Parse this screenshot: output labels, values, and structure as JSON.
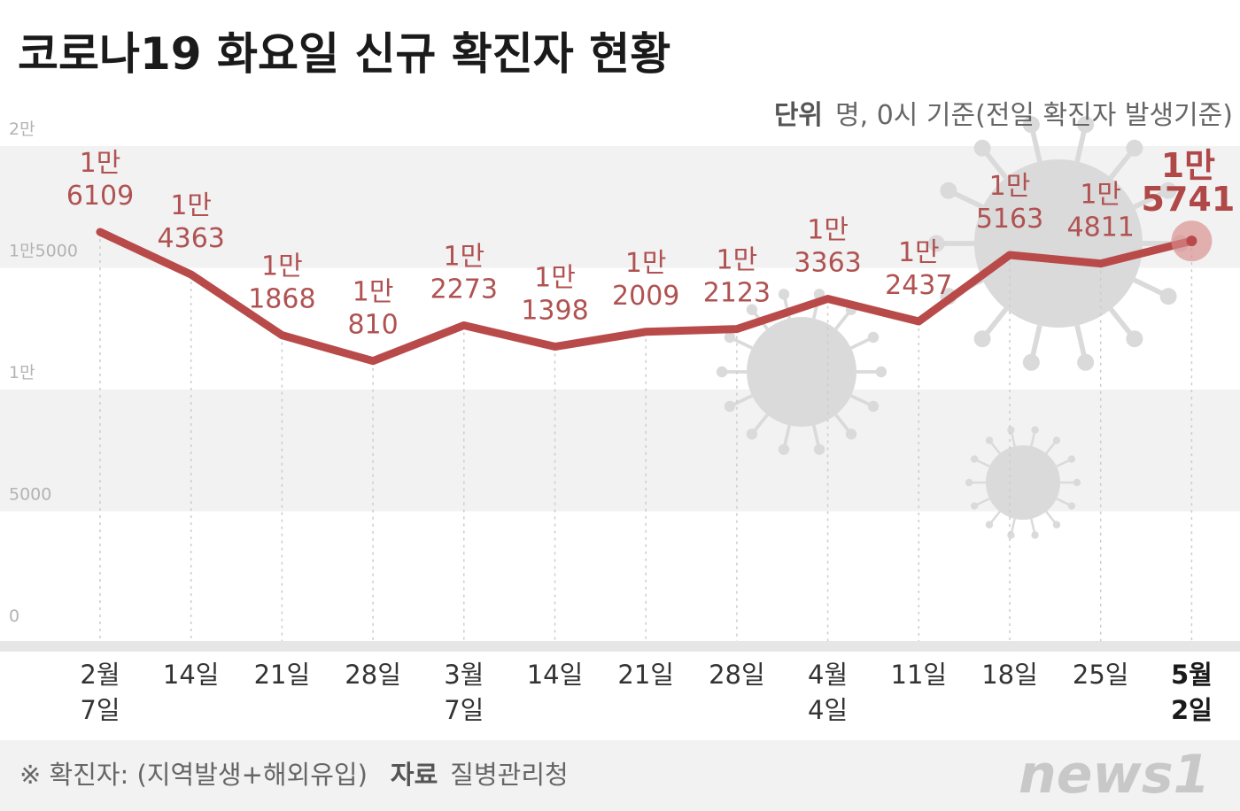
{
  "header": {
    "title": "코로나19 화요일 신규 확진자 현황",
    "unit_label": "단위",
    "unit_text": "명, 0시 기준(전일 확진자 발생기준)"
  },
  "footer": {
    "note": "※ 확진자: (지역발생+해외유입)",
    "source_label": "자료",
    "source_text": "질병관리청",
    "logo": "news1"
  },
  "colors": {
    "line": "#b94a4a",
    "label": "#b05252",
    "band": "#f2f2f2",
    "virus": "#dadada"
  },
  "chart_data": {
    "type": "line",
    "title": "코로나19 화요일 신규 확진자 현황",
    "xlabel": "",
    "ylabel": "",
    "ylim": [
      0,
      20000
    ],
    "yticks": [
      0,
      5000,
      10000,
      15000,
      20000
    ],
    "ytick_labels": [
      "0",
      "5000",
      "1만",
      "1만5000",
      "2만"
    ],
    "grid": "vertical dotted lines",
    "legend": "none",
    "categories": [
      [
        "2월",
        "7일"
      ],
      [
        "14일"
      ],
      [
        "21일"
      ],
      [
        "28일"
      ],
      [
        "3월",
        "7일"
      ],
      [
        "14일"
      ],
      [
        "21일"
      ],
      [
        "28일"
      ],
      [
        "4월",
        "4일"
      ],
      [
        "11일"
      ],
      [
        "18일"
      ],
      [
        "25일"
      ],
      [
        "5월",
        "2일"
      ]
    ],
    "values": [
      16109,
      14363,
      11868,
      10810,
      12273,
      11398,
      12009,
      12123,
      13363,
      12437,
      15163,
      14811,
      15741
    ],
    "labels": [
      [
        "1만",
        "6109"
      ],
      [
        "1만",
        "4363"
      ],
      [
        "1만",
        "1868"
      ],
      [
        "1만",
        "810"
      ],
      [
        "1만",
        "2273"
      ],
      [
        "1만",
        "1398"
      ],
      [
        "1만",
        "2009"
      ],
      [
        "1만",
        "2123"
      ],
      [
        "1만",
        "3363"
      ],
      [
        "1만",
        "2437"
      ],
      [
        "1만",
        "5163"
      ],
      [
        "1만",
        "4811"
      ],
      [
        "1만",
        "5741"
      ]
    ]
  }
}
